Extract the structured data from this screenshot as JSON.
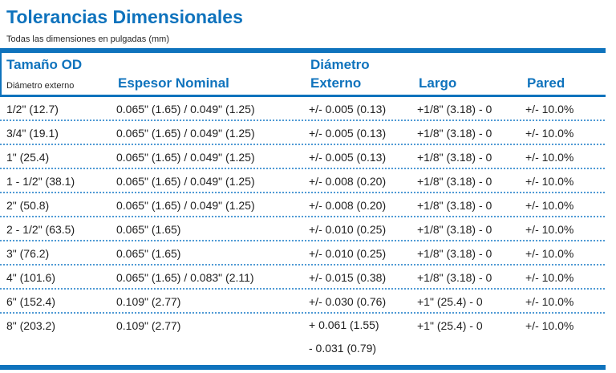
{
  "page": {
    "title": "Tolerancias Dimensionales",
    "subtitle": "Todas las dimensiones en pulgadas (mm)"
  },
  "colors": {
    "accent": "#0f73bd",
    "separator": "#4f9ad5",
    "body_text": "#1f1f1f"
  },
  "table": {
    "headers": {
      "size_title": "Tamaño OD",
      "size_subtitle": "Diámetro externo",
      "espesor": "Espesor Nominal",
      "diametro_line1": "Diámetro",
      "diametro_line2": "Externo",
      "largo": "Largo",
      "pared": "Pared"
    },
    "rows": [
      {
        "size": "1/2\" (12.7)",
        "espesor": "0.065\" (1.65) / 0.049\" (1.25)",
        "diametro": "+/- 0.005 (0.13)",
        "largo": "+1/8\" (3.18) - 0",
        "pared": "+/- 10.0%"
      },
      {
        "size": "3/4\" (19.1)",
        "espesor": "0.065\" (1.65) / 0.049\" (1.25)",
        "diametro": "+/- 0.005 (0.13)",
        "largo": "+1/8\" (3.18) - 0",
        "pared": "+/- 10.0%"
      },
      {
        "size": "1\" (25.4)",
        "espesor": "0.065\" (1.65) / 0.049\" (1.25)",
        "diametro": "+/- 0.005 (0.13)",
        "largo": "+1/8\" (3.18) - 0",
        "pared": "+/- 10.0%"
      },
      {
        "size": "1 - 1/2\" (38.1)",
        "espesor": "0.065\" (1.65) / 0.049\" (1.25)",
        "diametro": "+/- 0.008 (0.20)",
        "largo": "+1/8\" (3.18) - 0",
        "pared": "+/- 10.0%"
      },
      {
        "size": "2\" (50.8)",
        "espesor": "0.065\" (1.65) / 0.049\" (1.25)",
        "diametro": "+/- 0.008 (0.20)",
        "largo": "+1/8\" (3.18) - 0",
        "pared": "+/- 10.0%"
      },
      {
        "size": "2 - 1/2\" (63.5)",
        "espesor": "0.065\" (1.65)",
        "diametro": "+/- 0.010 (0.25)",
        "largo": "+1/8\" (3.18) - 0",
        "pared": "+/- 10.0%"
      },
      {
        "size": "3\" (76.2)",
        "espesor": "0.065\" (1.65)",
        "diametro": "+/- 0.010 (0.25)",
        "largo": "+1/8\" (3.18) - 0",
        "pared": "+/- 10.0%"
      },
      {
        "size": "4\" (101.6)",
        "espesor": "0.065\" (1.65) / 0.083\" (2.11)",
        "diametro": "+/- 0.015 (0.38)",
        "largo": "+1/8\" (3.18) - 0",
        "pared": "+/- 10.0%"
      },
      {
        "size": "6\" (152.4)",
        "espesor": "0.109\" (2.77)",
        "diametro": "+/- 0.030 (0.76)",
        "largo": "+1\" (25.4) - 0",
        "pared": "+/- 10.0%"
      },
      {
        "size": "8\" (203.2)",
        "espesor": "0.109\" (2.77)",
        "diametro": "+ 0.061 (1.55)",
        "diametro_line2": "- 0.031 (0.79)",
        "largo": "+1\" (25.4) - 0",
        "pared": "+/- 10.0%"
      }
    ]
  }
}
